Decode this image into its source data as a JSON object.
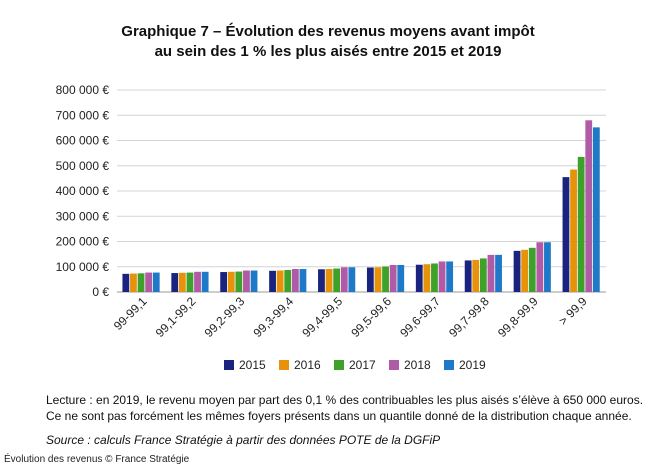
{
  "header": {
    "title_line1": "Graphique 7 – Évolution des revenus moyens avant impôt",
    "title_line2": "au sein des 1 % les plus aisés entre 2015 et 2019"
  },
  "notes": {
    "line1": "Lecture : en 2019, le revenu moyen par part des 0,1 % des contribuables les plus aisés s’élève à 650 000 euros.",
    "line2": "Ce ne sont pas forcément les mêmes foyers présents dans un quantile donné de la distribution chaque année.",
    "source": "Source : calculs France Stratégie à partir des données POTE de la DGFiP"
  },
  "caption": "Évolution des revenus © France Stratégie",
  "chart_data": {
    "type": "bar",
    "title": "Graphique 7 – Évolution des revenus moyens avant impôt au sein des 1 % les plus aisés entre 2015 et 2019",
    "ylim": [
      0,
      800000
    ],
    "yticks": [
      0,
      100000,
      200000,
      300000,
      400000,
      500000,
      600000,
      700000,
      800000
    ],
    "ytick_labels": [
      "0 €",
      "100 000 €",
      "200 000 €",
      "300 000 €",
      "400 000 €",
      "500 000 €",
      "600 000 €",
      "700 000 €",
      "800 000 €"
    ],
    "grid": true,
    "legend_position": "bottom",
    "categories": [
      "99-99,1",
      "99,1-99,2",
      "99,2-99,3",
      "99,3-99,4",
      "99,4-99,5",
      "99,5-99,6",
      "99,6-99,7",
      "99,7-99,8",
      "99,8-99,9",
      "> 99,9"
    ],
    "series": [
      {
        "name": "2015",
        "color": "#1a237e",
        "values": [
          72000,
          75000,
          79000,
          84000,
          90000,
          97000,
          108000,
          125000,
          163000,
          455000
        ]
      },
      {
        "name": "2016",
        "color": "#e6930b",
        "values": [
          73000,
          76000,
          80000,
          85000,
          91000,
          98000,
          110000,
          127000,
          167000,
          485000
        ]
      },
      {
        "name": "2017",
        "color": "#3ea22a",
        "values": [
          74000,
          77000,
          81000,
          87000,
          93000,
          101000,
          113000,
          133000,
          175000,
          535000
        ]
      },
      {
        "name": "2018",
        "color": "#b15aa5",
        "values": [
          77000,
          80000,
          85000,
          91000,
          98000,
          107000,
          121000,
          147000,
          197000,
          680000
        ]
      },
      {
        "name": "2019",
        "color": "#1e7ac8",
        "values": [
          77000,
          80000,
          85000,
          91000,
          98000,
          107000,
          121000,
          147000,
          197000,
          652000
        ]
      }
    ]
  }
}
